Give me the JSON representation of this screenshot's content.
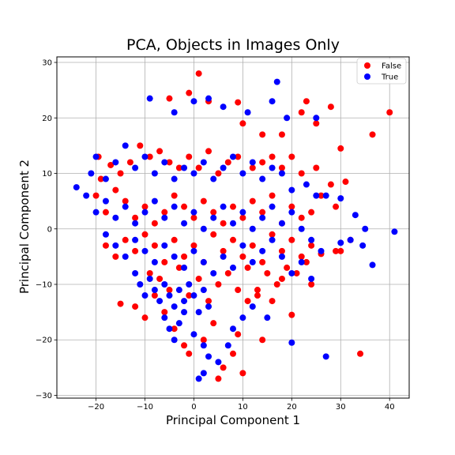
{
  "chart_data": {
    "type": "scatter",
    "title": "PCA, Objects in Images Only",
    "xlabel": "Principal Component 1",
    "ylabel": "Principal Component 2",
    "xlim": [
      -28,
      44
    ],
    "ylim": [
      -30.5,
      31
    ],
    "xticks": [
      -20,
      -10,
      0,
      10,
      20,
      30,
      40
    ],
    "yticks": [
      -30,
      -20,
      -10,
      0,
      10,
      20,
      30
    ],
    "xtick_labels": [
      "−20",
      "−10",
      "0",
      "10",
      "20",
      "30",
      "40"
    ],
    "ytick_labels": [
      "−30",
      "−20",
      "−10",
      "0",
      "10",
      "20",
      "30"
    ],
    "grid": true,
    "legend_position": "top-right",
    "series": [
      {
        "name": "False",
        "color": "#ff0000",
        "points": [
          [
            1,
            28
          ],
          [
            -1,
            24.5
          ],
          [
            -5,
            23.5
          ],
          [
            3,
            23
          ],
          [
            9,
            22.8
          ],
          [
            23,
            23
          ],
          [
            28,
            22
          ],
          [
            40,
            21
          ],
          [
            -19.5,
            13
          ],
          [
            -19,
            9
          ],
          [
            -17,
            11.5
          ],
          [
            -15,
            10
          ],
          [
            -13,
            12
          ],
          [
            -11,
            15
          ],
          [
            -9,
            13
          ],
          [
            -7,
            14
          ],
          [
            -5,
            12
          ],
          [
            -3,
            11
          ],
          [
            -1,
            13
          ],
          [
            1,
            11
          ],
          [
            3,
            14
          ],
          [
            5,
            10
          ],
          [
            7,
            12
          ],
          [
            9,
            13
          ],
          [
            12,
            11
          ],
          [
            14,
            12
          ],
          [
            16,
            13
          ],
          [
            18,
            11
          ],
          [
            20,
            13
          ],
          [
            22,
            10
          ],
          [
            25,
            11
          ],
          [
            28,
            8
          ],
          [
            31,
            8.5
          ],
          [
            36.5,
            17
          ],
          [
            30,
            14.5
          ],
          [
            25,
            19
          ],
          [
            22,
            21
          ],
          [
            18,
            17
          ],
          [
            14,
            17
          ],
          [
            10,
            19
          ],
          [
            -20,
            6
          ],
          [
            -18,
            3
          ],
          [
            -16,
            7
          ],
          [
            -14,
            5
          ],
          [
            -12,
            2
          ],
          [
            -10,
            4
          ],
          [
            -8,
            1
          ],
          [
            -6,
            3
          ],
          [
            -4,
            6
          ],
          [
            -2,
            4
          ],
          [
            0,
            2
          ],
          [
            2,
            5
          ],
          [
            4,
            3
          ],
          [
            6,
            1
          ],
          [
            8,
            4
          ],
          [
            10,
            2
          ],
          [
            12,
            5
          ],
          [
            14,
            3
          ],
          [
            16,
            6
          ],
          [
            18,
            1
          ],
          [
            20,
            4
          ],
          [
            22,
            2
          ],
          [
            24,
            3
          ],
          [
            26,
            6
          ],
          [
            29,
            4
          ],
          [
            -18,
            -3
          ],
          [
            -16,
            -5
          ],
          [
            -14,
            -2
          ],
          [
            -12,
            -4
          ],
          [
            -10,
            -1
          ],
          [
            -8,
            -3
          ],
          [
            -6,
            -6
          ],
          [
            -4,
            -2
          ],
          [
            -2,
            -5
          ],
          [
            0,
            -3
          ],
          [
            2,
            -6
          ],
          [
            4,
            -1
          ],
          [
            6,
            -4
          ],
          [
            8,
            -2
          ],
          [
            10,
            -5
          ],
          [
            12,
            -3
          ],
          [
            14,
            -6
          ],
          [
            16,
            -1
          ],
          [
            18,
            -4
          ],
          [
            20,
            -2
          ],
          [
            22,
            -5
          ],
          [
            24,
            -3
          ],
          [
            26,
            -4.5
          ],
          [
            29,
            -4
          ],
          [
            30,
            -4
          ],
          [
            32,
            -2
          ],
          [
            -15,
            -13.5
          ],
          [
            -12,
            -14
          ],
          [
            -10,
            -16
          ],
          [
            -8,
            -12
          ],
          [
            -6,
            -15
          ],
          [
            -4,
            -18
          ],
          [
            -2,
            -21
          ],
          [
            -1,
            -22.5
          ],
          [
            2,
            -20
          ],
          [
            4,
            -17
          ],
          [
            5,
            -27
          ],
          [
            6,
            -25
          ],
          [
            8,
            -22.5
          ],
          [
            9,
            -19
          ],
          [
            10,
            -26
          ],
          [
            11,
            -13
          ],
          [
            13,
            -11
          ],
          [
            14,
            -20
          ],
          [
            16,
            -13
          ],
          [
            18,
            -9
          ],
          [
            20,
            -15.5
          ],
          [
            21,
            -8
          ],
          [
            24,
            -10
          ],
          [
            34,
            -22.5
          ],
          [
            -9,
            -8
          ],
          [
            -7,
            -9
          ],
          [
            -5,
            -11
          ],
          [
            -3,
            -7
          ],
          [
            -1,
            -12
          ],
          [
            1,
            -9
          ],
          [
            3,
            -13
          ],
          [
            5,
            -10
          ],
          [
            7,
            -8
          ],
          [
            9,
            -11
          ],
          [
            11,
            -7
          ],
          [
            13,
            -12
          ],
          [
            15,
            -8
          ],
          [
            17,
            -10
          ],
          [
            19,
            -7
          ],
          [
            23,
            -6
          ]
        ]
      },
      {
        "name": "True",
        "color": "#0000ff",
        "points": [
          [
            -9,
            23.5
          ],
          [
            -4,
            21
          ],
          [
            0,
            23
          ],
          [
            3,
            23.5
          ],
          [
            6,
            22
          ],
          [
            11,
            21
          ],
          [
            16,
            23
          ],
          [
            17,
            26.5
          ],
          [
            19,
            20
          ],
          [
            25,
            20
          ],
          [
            -24,
            7.5
          ],
          [
            -21,
            10
          ],
          [
            -20,
            13
          ],
          [
            -18,
            9
          ],
          [
            -16,
            12
          ],
          [
            -14,
            15
          ],
          [
            -12,
            11
          ],
          [
            -10,
            13
          ],
          [
            -8,
            10
          ],
          [
            -6,
            12
          ],
          [
            -4,
            9
          ],
          [
            -2,
            11
          ],
          [
            0,
            10
          ],
          [
            2,
            12
          ],
          [
            4,
            9
          ],
          [
            6,
            11
          ],
          [
            8,
            13
          ],
          [
            10,
            10
          ],
          [
            12,
            12
          ],
          [
            14,
            9
          ],
          [
            16,
            11
          ],
          [
            18,
            10
          ],
          [
            20,
            7
          ],
          [
            23,
            8
          ],
          [
            25,
            6
          ],
          [
            27,
            6
          ],
          [
            30,
            5.5
          ],
          [
            33,
            2.5
          ],
          [
            35,
            0
          ],
          [
            34.5,
            -3
          ],
          [
            36.5,
            -6.5
          ],
          [
            41,
            -0.5
          ],
          [
            -22,
            6
          ],
          [
            -20,
            3
          ],
          [
            -18,
            5
          ],
          [
            -16,
            2
          ],
          [
            -14,
            4
          ],
          [
            -12,
            1
          ],
          [
            -10,
            3
          ],
          [
            -8,
            5
          ],
          [
            -6,
            2
          ],
          [
            -4,
            4
          ],
          [
            -2,
            1
          ],
          [
            0,
            3
          ],
          [
            2,
            0
          ],
          [
            4,
            2
          ],
          [
            6,
            4
          ],
          [
            8,
            1
          ],
          [
            10,
            3
          ],
          [
            12,
            0
          ],
          [
            14,
            2
          ],
          [
            16,
            4
          ],
          [
            18,
            1
          ],
          [
            20,
            3
          ],
          [
            22,
            0
          ],
          [
            24,
            -2
          ],
          [
            26,
            -4
          ],
          [
            30,
            -2.5
          ],
          [
            32,
            -2
          ],
          [
            -18,
            -1
          ],
          [
            -16,
            -3
          ],
          [
            -14,
            -5
          ],
          [
            -12,
            -2
          ],
          [
            -10,
            -4
          ],
          [
            -8,
            -6
          ],
          [
            -6,
            -3
          ],
          [
            -4,
            -5
          ],
          [
            -2,
            -7
          ],
          [
            0,
            -4
          ],
          [
            2,
            -6
          ],
          [
            4,
            -8
          ],
          [
            6,
            -5
          ],
          [
            8,
            -7
          ],
          [
            10,
            -3
          ],
          [
            12,
            -6
          ],
          [
            14,
            -4
          ],
          [
            16,
            -2
          ],
          [
            18,
            -5
          ],
          [
            20,
            -8
          ],
          [
            22,
            -6
          ],
          [
            24,
            -9
          ],
          [
            -12,
            -8
          ],
          [
            -11,
            -10
          ],
          [
            -10,
            -12
          ],
          [
            -9,
            -9
          ],
          [
            -8,
            -11
          ],
          [
            -7,
            -13
          ],
          [
            -6,
            -10
          ],
          [
            -5,
            -12
          ],
          [
            -4,
            -14
          ],
          [
            -3,
            -11
          ],
          [
            -2,
            -13
          ],
          [
            -1,
            -10
          ],
          [
            0,
            -12
          ],
          [
            1,
            -15
          ],
          [
            2,
            -11
          ],
          [
            3,
            -14
          ],
          [
            -6,
            -16
          ],
          [
            -5,
            -18
          ],
          [
            -4,
            -20
          ],
          [
            -3,
            -17
          ],
          [
            -2,
            -15
          ],
          [
            0,
            -19
          ],
          [
            2,
            -21
          ],
          [
            3,
            -23
          ],
          [
            5,
            -24
          ],
          [
            7,
            -21
          ],
          [
            8,
            -18
          ],
          [
            10,
            -16
          ],
          [
            12,
            -14
          ],
          [
            15,
            -16
          ],
          [
            20,
            -20.5
          ],
          [
            27,
            -23
          ],
          [
            1,
            -27
          ],
          [
            2,
            -26
          ]
        ]
      }
    ]
  }
}
